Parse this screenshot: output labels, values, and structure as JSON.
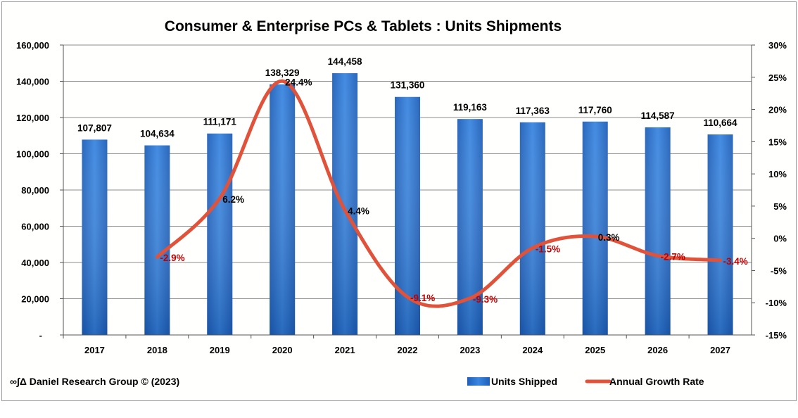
{
  "chart_data": {
    "type": "bar+line",
    "title": "Consumer & Enterprise PCs & Tablets : Units Shipments",
    "categories": [
      "2017",
      "2018",
      "2019",
      "2020",
      "2021",
      "2022",
      "2023",
      "2024",
      "2025",
      "2026",
      "2027"
    ],
    "series": [
      {
        "name": "Units Shipped",
        "type": "bar",
        "axis": "left",
        "color": "#2e75d6",
        "values": [
          107807,
          104634,
          111171,
          138329,
          144458,
          131360,
          119163,
          117363,
          117760,
          114587,
          110664
        ],
        "labels": [
          "107,807",
          "104,634",
          "111,171",
          "138,329",
          "144,458",
          "131,360",
          "119,163",
          "117,363",
          "117,760",
          "114,587",
          "110,664"
        ]
      },
      {
        "name": "Annual Growth Rate",
        "type": "line",
        "axis": "right",
        "color": "#e0523a",
        "smooth": true,
        "values": [
          null,
          -2.9,
          6.2,
          24.4,
          4.4,
          -9.1,
          -9.3,
          -1.5,
          0.3,
          -2.7,
          -3.4
        ],
        "labels": [
          null,
          "-2.9%",
          "6.2%",
          "24.4%",
          "4.4%",
          "-9.1%",
          "-9.3%",
          "-1.5%",
          "0.3%",
          "-2.7%",
          "-3.4%"
        ]
      }
    ],
    "y_left": {
      "range": [
        0,
        160000
      ],
      "ticks": [
        "-",
        "20,000",
        "40,000",
        "60,000",
        "80,000",
        "100,000",
        "120,000",
        "140,000",
        "160,000"
      ]
    },
    "y_right": {
      "range": [
        -15,
        30
      ],
      "ticks": [
        "-15%",
        "-10%",
        "-5%",
        "0%",
        "5%",
        "10%",
        "15%",
        "20%",
        "25%",
        "30%"
      ]
    },
    "grid": "horizontal",
    "legend_position": "bottom-right",
    "negative_label_color": "#c00000",
    "positive_label_color": "#000000"
  },
  "footer": {
    "credit": "∞∫Δ Daniel Research Group © (2023)"
  }
}
